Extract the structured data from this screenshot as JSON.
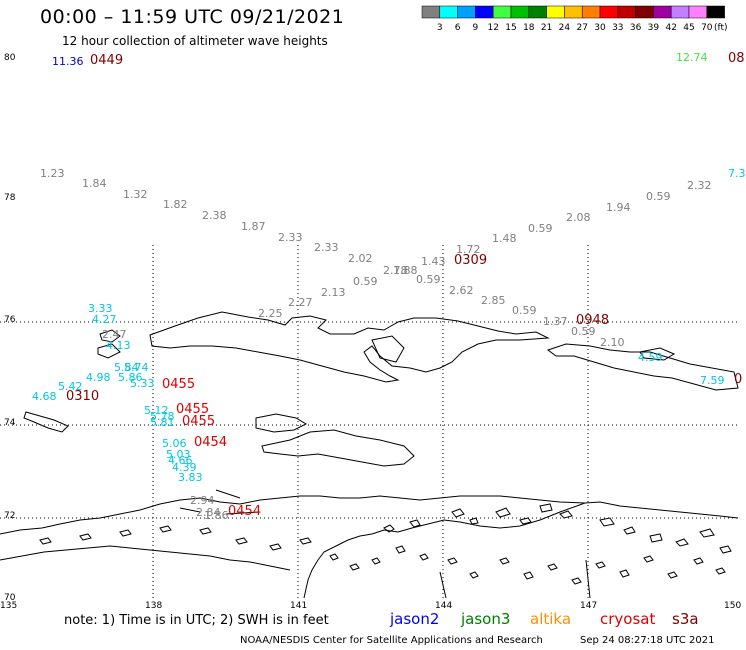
{
  "header": {
    "title": "00:00 – 11:59 UTC 09/21/2021",
    "subtitle": "12 hour collection of altimeter wave heights"
  },
  "legend": {
    "colors": [
      "#808080",
      "#00ffff",
      "#00a0ff",
      "#0000ff",
      "#40ff40",
      "#00c000",
      "#008000",
      "#ffff00",
      "#ffc000",
      "#ff8000",
      "#ff0000",
      "#c00000",
      "#800000",
      "#a000a0",
      "#c080ff",
      "#ff80ff",
      "#000000"
    ],
    "ticks": [
      "3",
      "6",
      "9",
      "12",
      "15",
      "18",
      "21",
      "24",
      "27",
      "30",
      "33",
      "36",
      "39",
      "42",
      "45",
      "70"
    ],
    "unit": "(ft)"
  },
  "axes": {
    "lat": [
      "80",
      "78",
      "76",
      "74",
      "72",
      "70"
    ],
    "lon": [
      "135",
      "138",
      "141",
      "144",
      "147",
      "150"
    ]
  },
  "observations": [
    {
      "text": "11.36",
      "color": "#0000c0"
    },
    {
      "text": "12.74",
      "color": "#40e040"
    },
    {
      "text": "7.3",
      "color": "#00c8e0"
    },
    {
      "text": "1.23",
      "color": "#808080"
    },
    {
      "text": "1.84",
      "color": "#808080"
    },
    {
      "text": "1.32",
      "color": "#808080"
    },
    {
      "text": "1.82",
      "color": "#808080"
    },
    {
      "text": "2.38",
      "color": "#808080"
    },
    {
      "text": "1.87",
      "color": "#808080"
    },
    {
      "text": "2.33",
      "color": "#808080"
    },
    {
      "text": "2.33",
      "color": "#808080"
    },
    {
      "text": "2.02",
      "color": "#808080"
    },
    {
      "text": "2.78",
      "color": "#808080"
    },
    {
      "text": "1.88",
      "color": "#808080"
    },
    {
      "text": "1.43",
      "color": "#808080"
    },
    {
      "text": "1.72",
      "color": "#808080"
    },
    {
      "text": "1.48",
      "color": "#808080"
    },
    {
      "text": "0.59",
      "color": "#808080"
    },
    {
      "text": "2.08",
      "color": "#808080"
    },
    {
      "text": "1.94",
      "color": "#808080"
    },
    {
      "text": "0.59",
      "color": "#808080"
    },
    {
      "text": "2.32",
      "color": "#808080"
    },
    {
      "text": "0.59",
      "color": "#808080"
    },
    {
      "text": "0.59",
      "color": "#808080"
    },
    {
      "text": "2.13",
      "color": "#808080"
    },
    {
      "text": "2.27",
      "color": "#808080"
    },
    {
      "text": "2.25",
      "color": "#808080"
    },
    {
      "text": "2.62",
      "color": "#808080"
    },
    {
      "text": "2.85",
      "color": "#808080"
    },
    {
      "text": "0.59",
      "color": "#808080"
    },
    {
      "text": "1.37",
      "color": "#808080"
    },
    {
      "text": "0.59",
      "color": "#808080"
    },
    {
      "text": "2.10",
      "color": "#808080"
    },
    {
      "text": "3.33",
      "color": "#00c8e0"
    },
    {
      "text": "4.27",
      "color": "#00c8e0"
    },
    {
      "text": "2.47",
      "color": "#808080"
    },
    {
      "text": "4.13",
      "color": "#00c8e0"
    },
    {
      "text": "4.98",
      "color": "#00c8e0"
    },
    {
      "text": "5.42",
      "color": "#00c8e0"
    },
    {
      "text": "4.68",
      "color": "#00c8e0"
    },
    {
      "text": "5.84",
      "color": "#00c8e0"
    },
    {
      "text": "5.74",
      "color": "#00c8e0"
    },
    {
      "text": "5.86",
      "color": "#00c8e0"
    },
    {
      "text": "5.33",
      "color": "#00c8e0"
    },
    {
      "text": "5.12",
      "color": "#00c8e0"
    },
    {
      "text": "5.78",
      "color": "#00c8e0"
    },
    {
      "text": "5.81",
      "color": "#00c8e0"
    },
    {
      "text": "5.06",
      "color": "#00c8e0"
    },
    {
      "text": "5.03",
      "color": "#00c8e0"
    },
    {
      "text": "4.66",
      "color": "#00c8e0"
    },
    {
      "text": "4.39",
      "color": "#00c8e0"
    },
    {
      "text": "3.83",
      "color": "#00c8e0"
    },
    {
      "text": "2.94",
      "color": "#808080"
    },
    {
      "text": "2.84",
      "color": "#808080"
    },
    {
      "text": "1.86",
      "color": "#808080"
    },
    {
      "text": "4.59",
      "color": "#00c8e0"
    },
    {
      "text": "7.59",
      "color": "#00c8e0"
    }
  ],
  "pass_times": [
    {
      "text": "0449",
      "color": "#800000"
    },
    {
      "text": "08",
      "color": "#800000"
    },
    {
      "text": "0309",
      "color": "#800000"
    },
    {
      "text": "0948",
      "color": "#800000"
    },
    {
      "text": "0455",
      "color": "#e00000"
    },
    {
      "text": "0310",
      "color": "#800000"
    },
    {
      "text": "0455",
      "color": "#e00000"
    },
    {
      "text": "0455",
      "color": "#e00000"
    },
    {
      "text": "0454",
      "color": "#e00000"
    },
    {
      "text": "0454",
      "color": "#e00000"
    },
    {
      "text": "0",
      "color": "#800000"
    }
  ],
  "footer": {
    "note": "note: 1) Time is in UTC; 2) SWH is in feet",
    "satellites": [
      {
        "name": "jason2",
        "color": "#0000ff"
      },
      {
        "name": "jason3",
        "color": "#008000"
      },
      {
        "name": "altika",
        "color": "#ff9000"
      },
      {
        "name": "cryosat",
        "color": "#e00000"
      },
      {
        "name": "s3a",
        "color": "#800000"
      }
    ],
    "credit": "NOAA/NESDIS Center for Satellite Applications and Research",
    "timestamp": "Sep 24 08:27:18 UTC 2021"
  }
}
